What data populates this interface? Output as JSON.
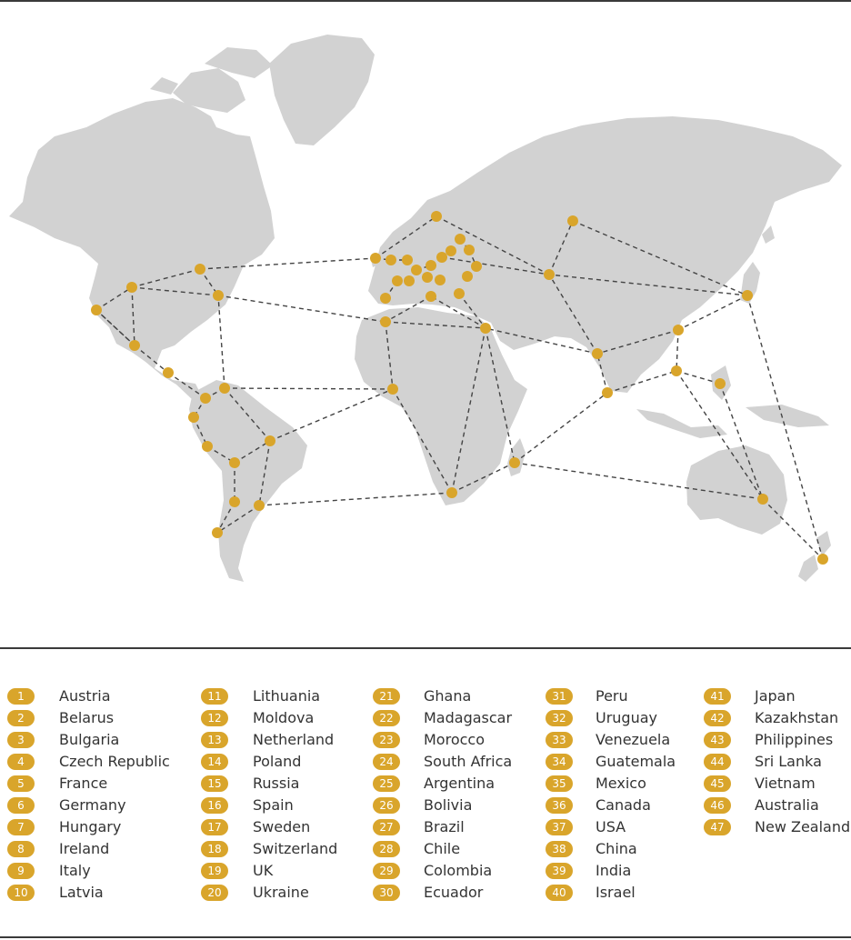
{
  "style": {
    "land_color": "#d2d2d2",
    "route_color": "#444444",
    "node_color": "#d9a52b",
    "badge_color": "#d9a52b",
    "rule_color": "#3a3a3a"
  },
  "legend": {
    "columns": [
      [
        {
          "num": "1",
          "name": "Austria"
        },
        {
          "num": "2",
          "name": "Belarus"
        },
        {
          "num": "3",
          "name": "Bulgaria"
        },
        {
          "num": "4",
          "name": "Czech Republic"
        },
        {
          "num": "5",
          "name": "France"
        },
        {
          "num": "6",
          "name": "Germany"
        },
        {
          "num": "7",
          "name": "Hungary"
        },
        {
          "num": "8",
          "name": "Ireland"
        },
        {
          "num": "9",
          "name": "Italy"
        },
        {
          "num": "10",
          "name": "Latvia"
        }
      ],
      [
        {
          "num": "11",
          "name": "Lithuania"
        },
        {
          "num": "12",
          "name": "Moldova"
        },
        {
          "num": "13",
          "name": "Netherland"
        },
        {
          "num": "14",
          "name": "Poland"
        },
        {
          "num": "15",
          "name": "Russia"
        },
        {
          "num": "16",
          "name": "Spain"
        },
        {
          "num": "17",
          "name": "Sweden"
        },
        {
          "num": "18",
          "name": "Switzerland"
        },
        {
          "num": "19",
          "name": "UK"
        },
        {
          "num": "20",
          "name": "Ukraine"
        }
      ],
      [
        {
          "num": "21",
          "name": "Ghana"
        },
        {
          "num": "22",
          "name": "Madagascar"
        },
        {
          "num": "23",
          "name": "Morocco"
        },
        {
          "num": "24",
          "name": "South Africa"
        },
        {
          "num": "25",
          "name": "Argentina"
        },
        {
          "num": "26",
          "name": "Bolivia"
        },
        {
          "num": "27",
          "name": "Brazil"
        },
        {
          "num": "28",
          "name": "Chile"
        },
        {
          "num": "29",
          "name": "Colombia"
        },
        {
          "num": "30",
          "name": "Ecuador"
        }
      ],
      [
        {
          "num": "31",
          "name": "Peru"
        },
        {
          "num": "32",
          "name": "Uruguay"
        },
        {
          "num": "33",
          "name": "Venezuela"
        },
        {
          "num": "34",
          "name": "Guatemala"
        },
        {
          "num": "35",
          "name": "Mexico"
        },
        {
          "num": "36",
          "name": "Canada"
        },
        {
          "num": "37",
          "name": "USA"
        },
        {
          "num": "38",
          "name": "China"
        },
        {
          "num": "39",
          "name": "India"
        },
        {
          "num": "40",
          "name": "Israel"
        }
      ],
      [
        {
          "num": "41",
          "name": "Japan"
        },
        {
          "num": "42",
          "name": "Kazakhstan"
        },
        {
          "num": "43",
          "name": "Philippines"
        },
        {
          "num": "44",
          "name": "Sri Lanka"
        },
        {
          "num": "45",
          "name": "Vietnam"
        },
        {
          "num": "46",
          "name": "Australia"
        },
        {
          "num": "47",
          "name": "New Zealand"
        }
      ]
    ]
  }
}
